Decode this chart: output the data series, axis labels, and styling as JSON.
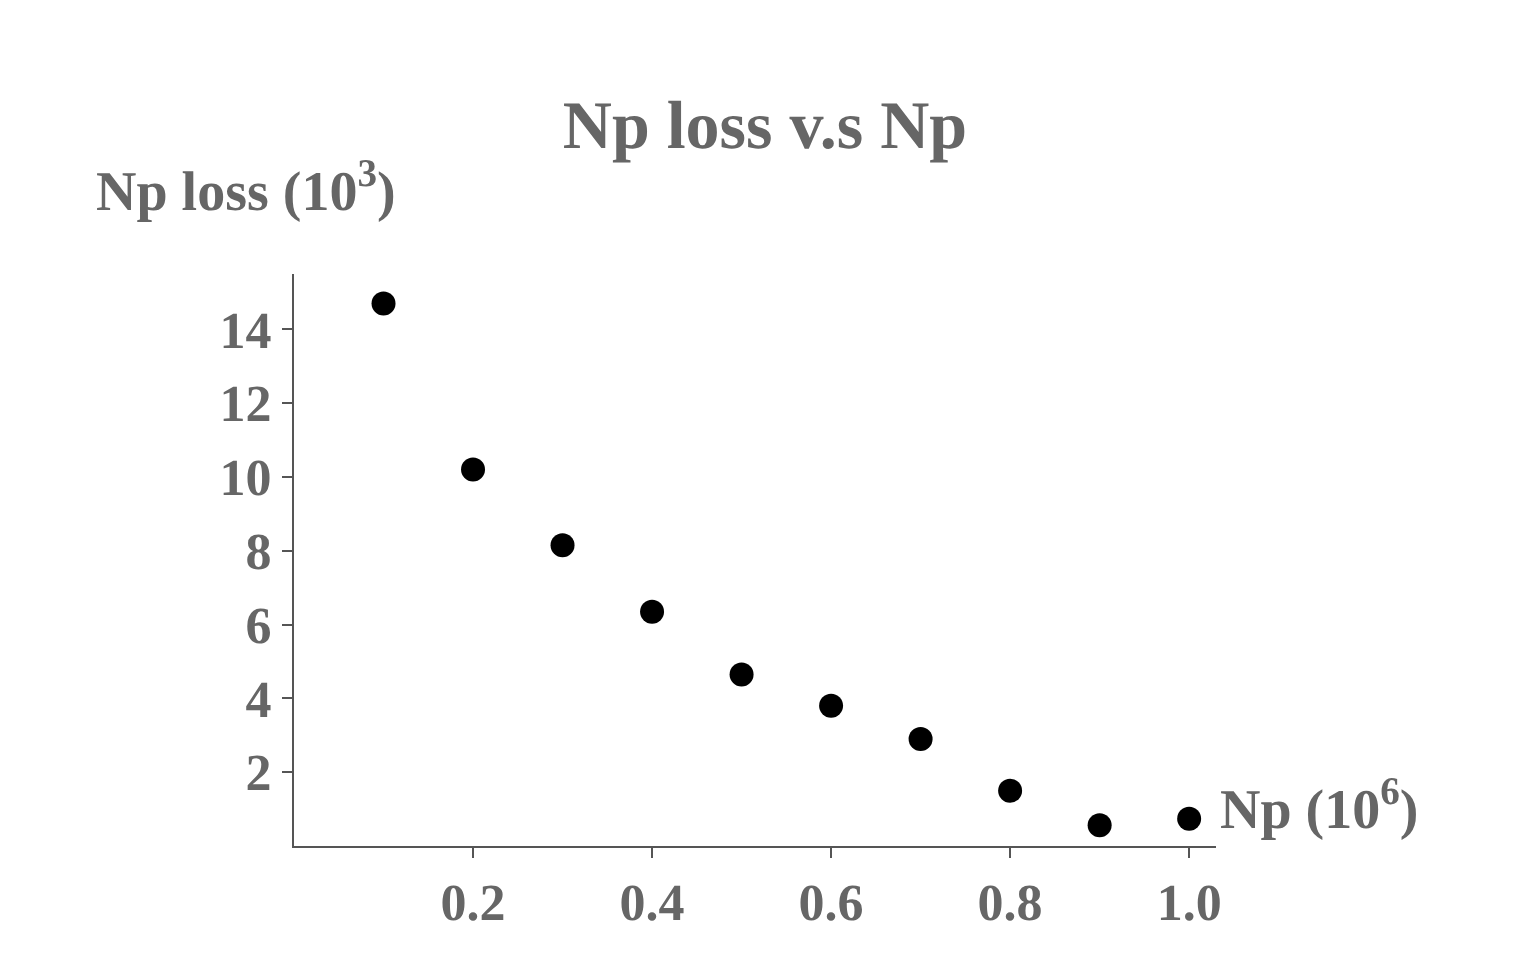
{
  "chart_data": {
    "type": "scatter",
    "title": "Np loss v.s Np",
    "xlabel": "Np (10$^{6}$)",
    "ylabel": "Np loss (10$^{3}$)",
    "x": [
      0.1,
      0.2,
      0.3,
      0.4,
      0.5,
      0.6,
      0.7,
      0.8,
      0.9,
      1.0
    ],
    "series": [
      {
        "color": "#000000",
        "values": [
          14.7,
          10.2,
          8.15,
          6.35,
          4.65,
          3.8,
          2.9,
          1.5,
          0.56,
          0.74
        ]
      }
    ],
    "xlim": [
      0,
      1.03
    ],
    "ylim": [
      0,
      15.5
    ],
    "xticks": [
      0.2,
      0.4,
      0.6,
      0.8,
      {
        "value": 1.0,
        "label": "1.0"
      }
    ],
    "yticks": [
      2,
      4,
      6,
      8,
      10,
      12,
      14
    ],
    "marker": "circle"
  }
}
